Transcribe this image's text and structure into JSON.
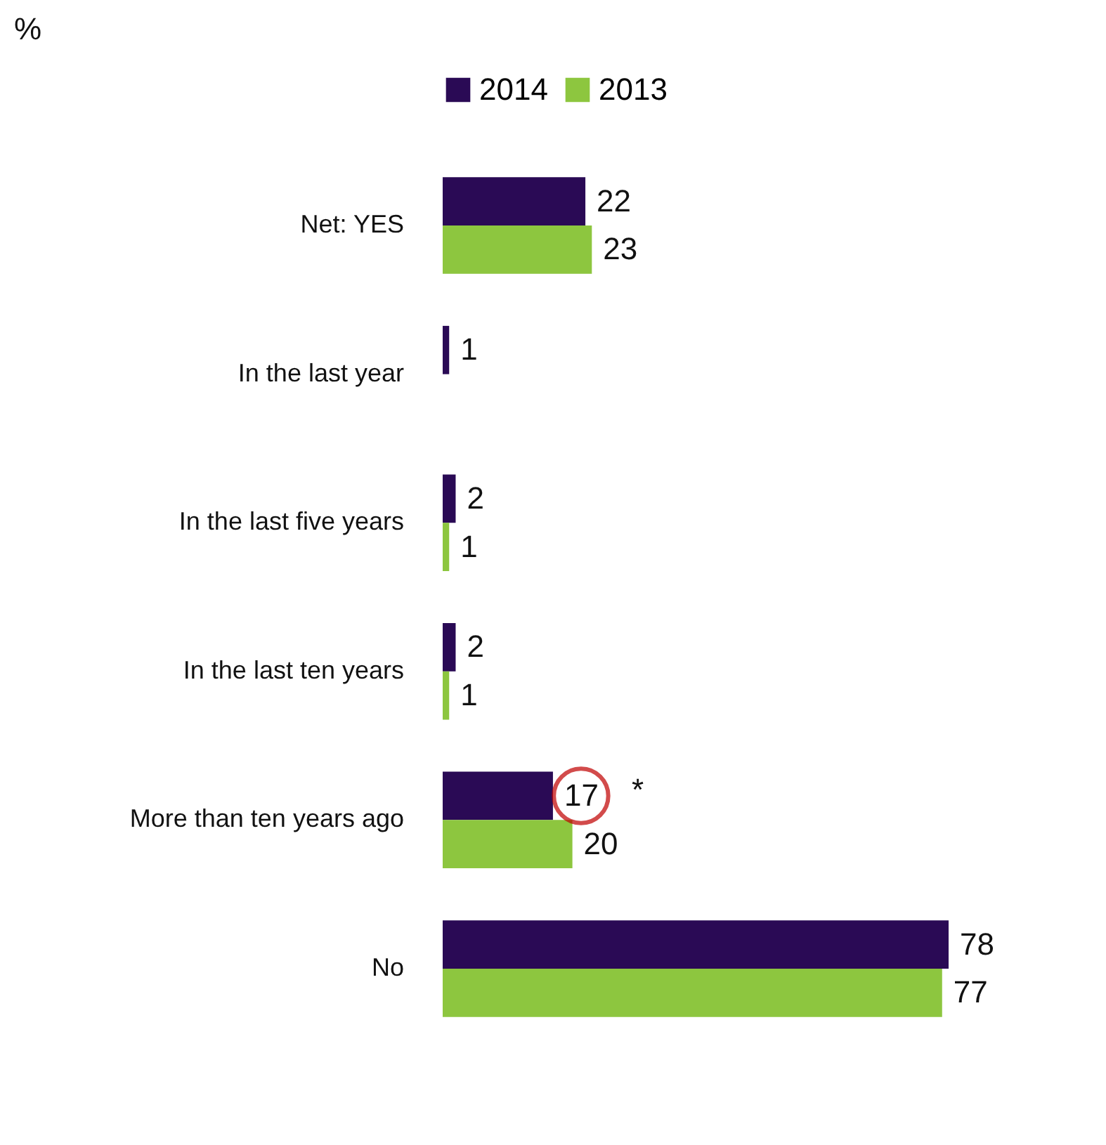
{
  "chart_data": {
    "type": "bar",
    "orientation": "horizontal",
    "xlabel": "%",
    "categories": [
      "Net: YES",
      "In the last year",
      "In the last five years",
      "In the last ten years",
      "More than ten years ago",
      "No"
    ],
    "series": [
      {
        "name": "2014",
        "color": "#2a0a55",
        "values": [
          22,
          1,
          2,
          2,
          17,
          78
        ]
      },
      {
        "name": "2013",
        "color": "#8dc63f",
        "values": [
          23,
          null,
          1,
          1,
          20,
          77
        ]
      }
    ],
    "data_labels": true,
    "legend": "top",
    "annotations": [
      {
        "text": "*",
        "x": 17,
        "y": "More than ten years ago"
      }
    ]
  }
}
